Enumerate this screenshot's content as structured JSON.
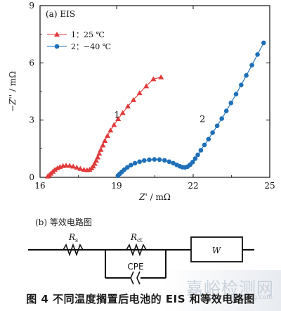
{
  "chart_data": {
    "type": "scatter",
    "title": "(a) EIS",
    "xlabel_main": "Z'",
    "xlabel_unit": " / mΩ",
    "ylabel_main": "−Z''",
    "ylabel_unit": " / mΩ",
    "xlim": [
      16,
      25
    ],
    "ylim": [
      0,
      9
    ],
    "xticks": [
      "16",
      "19",
      "22",
      "25"
    ],
    "yticks": [
      "0",
      "3",
      "6",
      "9"
    ],
    "series": [
      {
        "name": "1：25 ℃",
        "label": "1",
        "color": "#e03a3a",
        "marker": "triangle",
        "x": [
          16.3,
          16.36,
          16.42,
          16.5,
          16.58,
          16.68,
          16.78,
          16.9,
          17.02,
          17.16,
          17.3,
          17.44,
          17.58,
          17.72,
          17.84,
          17.94,
          18.02,
          18.08,
          18.14,
          18.2,
          18.26,
          18.32,
          18.38,
          18.46,
          18.54,
          18.64,
          18.76,
          18.9,
          19.06,
          19.24,
          19.44,
          19.66,
          19.9,
          20.16,
          20.44,
          20.74
        ],
        "y": [
          0.05,
          0.12,
          0.2,
          0.3,
          0.4,
          0.48,
          0.55,
          0.6,
          0.62,
          0.61,
          0.57,
          0.51,
          0.45,
          0.4,
          0.38,
          0.4,
          0.48,
          0.58,
          0.72,
          0.88,
          1.05,
          1.25,
          1.45,
          1.68,
          1.92,
          2.18,
          2.46,
          2.75,
          3.06,
          3.38,
          3.72,
          4.06,
          4.42,
          4.78,
          5.15,
          5.25
        ]
      },
      {
        "name": "2：−40 ℃",
        "label": "2",
        "color": "#1e6fb8",
        "marker": "circle",
        "x": [
          19.05,
          19.12,
          19.2,
          19.3,
          19.42,
          19.56,
          19.72,
          19.9,
          20.08,
          20.28,
          20.48,
          20.68,
          20.88,
          21.06,
          21.22,
          21.36,
          21.48,
          21.58,
          21.68,
          21.78,
          21.88,
          21.98,
          22.08,
          22.18,
          22.3,
          22.44,
          22.6,
          22.76,
          22.94,
          23.12,
          23.3,
          23.48,
          23.68,
          23.88,
          24.08,
          24.3,
          24.52,
          24.76
        ],
        "y": [
          0.08,
          0.18,
          0.28,
          0.4,
          0.52,
          0.64,
          0.74,
          0.82,
          0.88,
          0.92,
          0.94,
          0.93,
          0.89,
          0.82,
          0.74,
          0.65,
          0.58,
          0.53,
          0.52,
          0.56,
          0.66,
          0.8,
          0.98,
          1.18,
          1.42,
          1.7,
          2.0,
          2.34,
          2.7,
          3.08,
          3.48,
          3.9,
          4.36,
          4.84,
          5.34,
          5.88,
          6.44,
          7.05
        ]
      }
    ],
    "curve_labels_note": "",
    "grid": false,
    "legend": "top-left"
  },
  "circuit": {
    "title": "(b) 等效电路图",
    "rs_main": "R",
    "rs_sub": "s",
    "rct_main": "R",
    "rct_sub": "ct",
    "cpe": "CPE",
    "w": "W"
  },
  "caption": "图 4   不同温度搁置后电池的 EIS 和等效电路图",
  "watermark": {
    "text": "嘉峪检测网",
    "url": "www.anytesting.com"
  }
}
